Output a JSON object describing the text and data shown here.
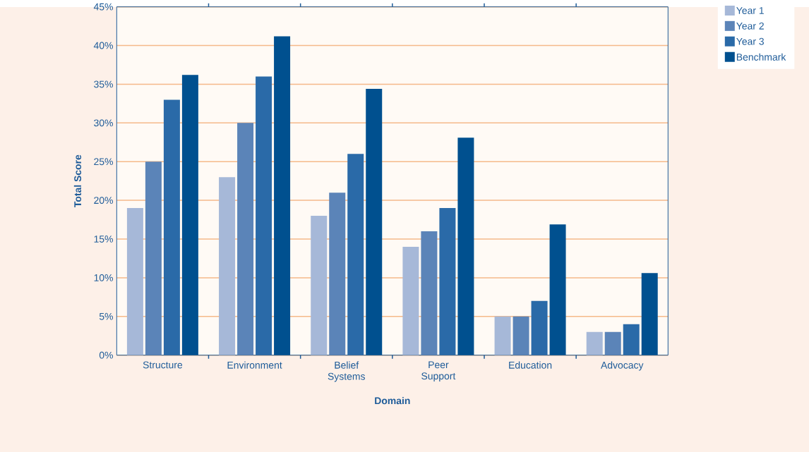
{
  "chart_data": {
    "type": "bar",
    "xlabel": "Domain",
    "ylabel": "Total Score",
    "categories": [
      "Structure",
      "Environment",
      "Belief Systems",
      "Peer Support",
      "Education",
      "Advocacy"
    ],
    "series": [
      {
        "name": "Year 1",
        "color": "#a6b8d8",
        "values": [
          19,
          23,
          18,
          14,
          5,
          3
        ]
      },
      {
        "name": "Year 2",
        "color": "#5b84b8",
        "values": [
          25,
          30,
          21,
          16,
          5,
          3
        ]
      },
      {
        "name": "Year 3",
        "color": "#2a6aa8",
        "values": [
          33,
          36,
          26,
          19,
          7,
          4
        ]
      },
      {
        "name": "Benchmark",
        "color": "#00508f",
        "values": [
          36.2,
          41.2,
          34.4,
          28.1,
          16.9,
          10.6
        ]
      }
    ],
    "ylim": [
      0,
      45
    ],
    "yticks": [
      {
        "value": 0,
        "label": "0%"
      },
      {
        "value": 5,
        "label": "5%"
      },
      {
        "value": 10,
        "label": "10%"
      },
      {
        "value": 15,
        "label": "15%"
      },
      {
        "value": 20,
        "label": "20%"
      },
      {
        "value": 25,
        "label": "25%"
      },
      {
        "value": 30,
        "label": "30%"
      },
      {
        "value": 35,
        "label": "35%"
      },
      {
        "value": 40,
        "label": "40%"
      },
      {
        "value": 45,
        "label": "45%"
      }
    ],
    "grid": "y",
    "legend": "top right"
  }
}
